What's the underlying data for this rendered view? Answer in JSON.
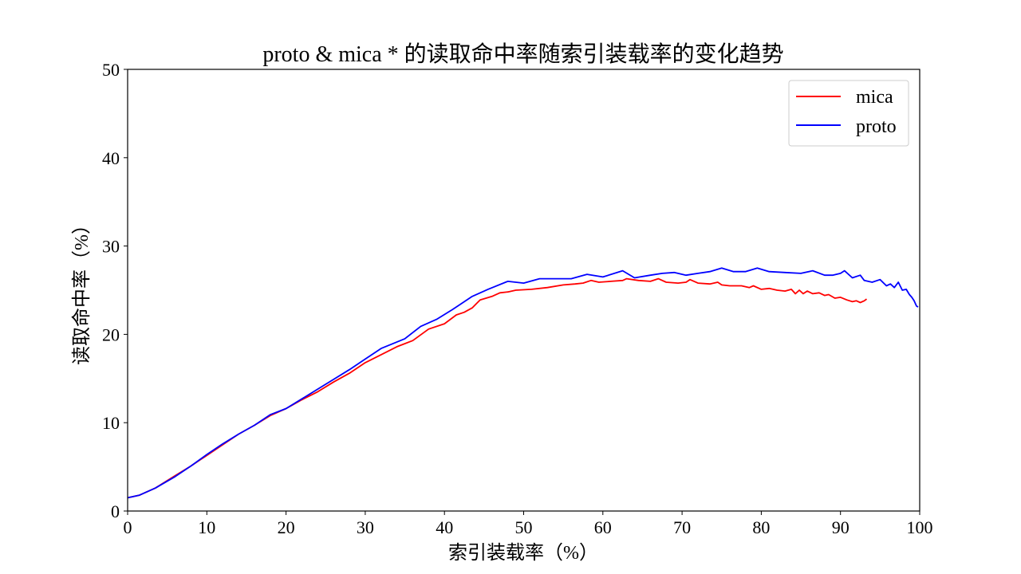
{
  "chart_data": {
    "type": "line",
    "title": "proto & mica * 的读取命中率随索引装载率的变化趋势",
    "xlabel": "索引装载率（%）",
    "ylabel": "读取命中率（%）",
    "xlim": [
      0,
      100
    ],
    "ylim": [
      0,
      50
    ],
    "xticks": [
      0,
      10,
      20,
      30,
      40,
      50,
      60,
      70,
      80,
      90,
      100
    ],
    "yticks": [
      0,
      10,
      20,
      30,
      40,
      50
    ],
    "legend_position": "top-right",
    "grid": false,
    "series": [
      {
        "name": "mica",
        "color": "#ff0000",
        "points": [
          [
            0,
            1.5
          ],
          [
            1.5,
            1.8
          ],
          [
            3.5,
            2.6
          ],
          [
            6,
            4
          ],
          [
            8,
            5.1
          ],
          [
            10,
            6.3
          ],
          [
            12,
            7.5
          ],
          [
            14,
            8.7
          ],
          [
            16,
            9.7
          ],
          [
            18,
            10.8
          ],
          [
            20,
            11.6
          ],
          [
            22,
            12.6
          ],
          [
            24,
            13.5
          ],
          [
            26,
            14.6
          ],
          [
            28,
            15.6
          ],
          [
            30,
            16.8
          ],
          [
            32,
            17.7
          ],
          [
            34,
            18.6
          ],
          [
            36,
            19.3
          ],
          [
            38,
            20.6
          ],
          [
            40,
            21.2
          ],
          [
            41.5,
            22.2
          ],
          [
            42.5,
            22.5
          ],
          [
            43.5,
            23
          ],
          [
            44.5,
            23.9
          ],
          [
            46,
            24.3
          ],
          [
            47,
            24.7
          ],
          [
            48,
            24.8
          ],
          [
            49,
            25
          ],
          [
            51,
            25.1
          ],
          [
            53,
            25.3
          ],
          [
            55,
            25.6
          ],
          [
            56.5,
            25.7
          ],
          [
            57.5,
            25.8
          ],
          [
            58.5,
            26.1
          ],
          [
            59.5,
            25.9
          ],
          [
            61,
            26
          ],
          [
            62.5,
            26.1
          ],
          [
            63,
            26.3
          ],
          [
            64.5,
            26.1
          ],
          [
            66,
            26
          ],
          [
            67,
            26.3
          ],
          [
            68,
            25.9
          ],
          [
            69.5,
            25.8
          ],
          [
            70.5,
            25.9
          ],
          [
            71,
            26.2
          ],
          [
            72,
            25.8
          ],
          [
            73.5,
            25.7
          ],
          [
            74.5,
            25.9
          ],
          [
            75,
            25.6
          ],
          [
            76,
            25.5
          ],
          [
            77.5,
            25.5
          ],
          [
            78.5,
            25.3
          ],
          [
            79,
            25.5
          ],
          [
            80,
            25.1
          ],
          [
            81,
            25.2
          ],
          [
            82,
            25
          ],
          [
            83,
            24.9
          ],
          [
            83.8,
            25.1
          ],
          [
            84.3,
            24.6
          ],
          [
            84.8,
            25
          ],
          [
            85.3,
            24.6
          ],
          [
            85.8,
            24.9
          ],
          [
            86.5,
            24.6
          ],
          [
            87.3,
            24.7
          ],
          [
            88,
            24.4
          ],
          [
            88.5,
            24.5
          ],
          [
            89.3,
            24.1
          ],
          [
            90,
            24.2
          ],
          [
            90.8,
            23.9
          ],
          [
            91.5,
            23.7
          ],
          [
            92,
            23.8
          ],
          [
            92.5,
            23.6
          ],
          [
            93,
            23.8
          ],
          [
            93.3,
            24
          ]
        ]
      },
      {
        "name": "proto",
        "color": "#0000ff",
        "points": [
          [
            0,
            1.5
          ],
          [
            1.5,
            1.8
          ],
          [
            3.5,
            2.6
          ],
          [
            6,
            3.9
          ],
          [
            8,
            5.1
          ],
          [
            10,
            6.4
          ],
          [
            12,
            7.6
          ],
          [
            14,
            8.7
          ],
          [
            16,
            9.7
          ],
          [
            18,
            10.9
          ],
          [
            20,
            11.6
          ],
          [
            22,
            12.7
          ],
          [
            24,
            13.8
          ],
          [
            26,
            14.9
          ],
          [
            28,
            16
          ],
          [
            30,
            17.2
          ],
          [
            32,
            18.4
          ],
          [
            35,
            19.5
          ],
          [
            37,
            20.9
          ],
          [
            39,
            21.7
          ],
          [
            41,
            22.8
          ],
          [
            43.5,
            24.3
          ],
          [
            45.5,
            25.1
          ],
          [
            48,
            26
          ],
          [
            50,
            25.8
          ],
          [
            52,
            26.3
          ],
          [
            56,
            26.3
          ],
          [
            58,
            26.8
          ],
          [
            60,
            26.5
          ],
          [
            62.5,
            27.2
          ],
          [
            64,
            26.4
          ],
          [
            66,
            26.7
          ],
          [
            67.5,
            26.9
          ],
          [
            69,
            27
          ],
          [
            70.5,
            26.7
          ],
          [
            72,
            26.9
          ],
          [
            73.5,
            27.1
          ],
          [
            75,
            27.5
          ],
          [
            76.5,
            27.1
          ],
          [
            78,
            27.1
          ],
          [
            79.5,
            27.5
          ],
          [
            81,
            27.1
          ],
          [
            83,
            27
          ],
          [
            85,
            26.9
          ],
          [
            86.5,
            27.2
          ],
          [
            88,
            26.7
          ],
          [
            89,
            26.7
          ],
          [
            90,
            26.9
          ],
          [
            90.5,
            27.2
          ],
          [
            91.5,
            26.4
          ],
          [
            92.5,
            26.7
          ],
          [
            93,
            26.1
          ],
          [
            94,
            25.9
          ],
          [
            95,
            26.2
          ],
          [
            95.8,
            25.5
          ],
          [
            96.3,
            25.7
          ],
          [
            96.8,
            25.3
          ],
          [
            97.3,
            25.9
          ],
          [
            97.8,
            25
          ],
          [
            98.3,
            25.1
          ],
          [
            98.7,
            24.5
          ],
          [
            99,
            24.2
          ],
          [
            99.3,
            23.8
          ],
          [
            99.6,
            23.2
          ],
          [
            99.8,
            23.1
          ]
        ]
      }
    ]
  }
}
